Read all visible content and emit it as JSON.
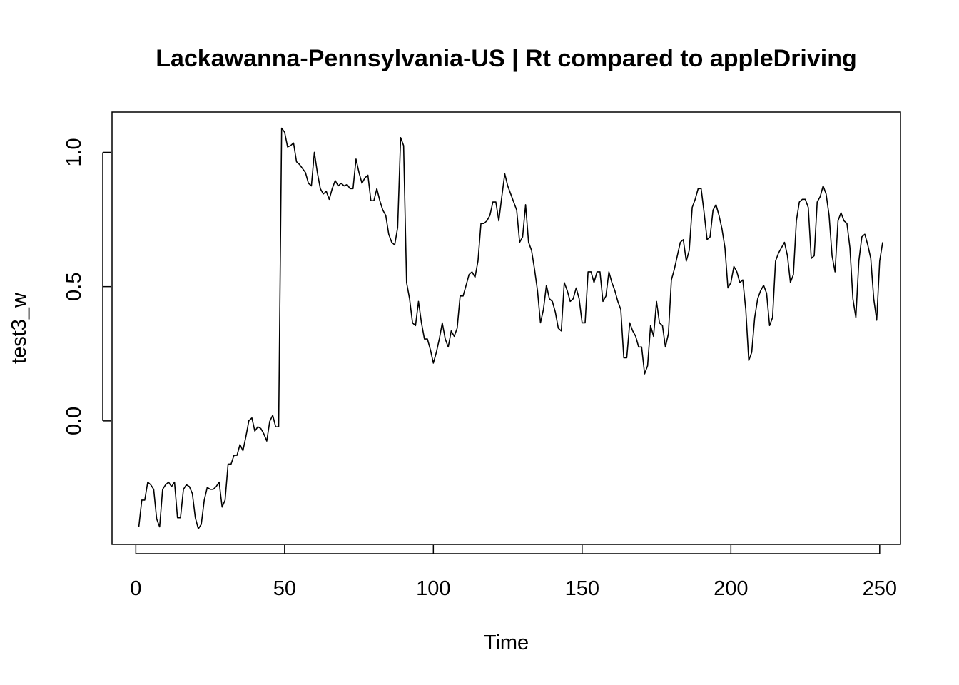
{
  "chart_data": {
    "type": "line",
    "title": "Lackawanna-Pennsylvania-US | Rt compared to appleDriving",
    "xlabel": "Time",
    "ylabel": "test3_w",
    "xlim": [
      -8,
      257
    ],
    "ylim": [
      -0.46,
      1.15
    ],
    "x_ticks": [
      0,
      50,
      100,
      150,
      200,
      250
    ],
    "y_ticks": [
      0.0,
      0.5,
      1.0
    ],
    "x_tick_labels": [
      "0",
      "50",
      "100",
      "150",
      "200",
      "250"
    ],
    "y_tick_labels": [
      "0.0",
      "0.5",
      "1.0"
    ],
    "grid": false,
    "series": [
      {
        "color": "#000000",
        "x_start": 1,
        "values": [
          -0.395,
          -0.295,
          -0.295,
          -0.228,
          -0.238,
          -0.255,
          -0.365,
          -0.395,
          -0.255,
          -0.238,
          -0.228,
          -0.245,
          -0.228,
          -0.361,
          -0.361,
          -0.255,
          -0.238,
          -0.245,
          -0.271,
          -0.361,
          -0.402,
          -0.385,
          -0.295,
          -0.248,
          -0.255,
          -0.255,
          -0.245,
          -0.228,
          -0.321,
          -0.295,
          -0.161,
          -0.161,
          -0.128,
          -0.128,
          -0.088,
          -0.111,
          -0.058,
          0.001,
          0.011,
          -0.038,
          -0.022,
          -0.028,
          -0.048,
          -0.075,
          -0.002,
          0.021,
          -0.022,
          -0.022,
          1.09,
          1.075,
          1.02,
          1.025,
          1.035,
          0.965,
          0.955,
          0.94,
          0.925,
          0.885,
          0.875,
          1.0,
          0.925,
          0.865,
          0.845,
          0.855,
          0.825,
          0.865,
          0.895,
          0.875,
          0.885,
          0.875,
          0.88,
          0.865,
          0.865,
          0.975,
          0.925,
          0.885,
          0.905,
          0.915,
          0.82,
          0.82,
          0.865,
          0.82,
          0.785,
          0.765,
          0.695,
          0.665,
          0.655,
          0.72,
          1.055,
          1.025,
          0.515,
          0.455,
          0.365,
          0.355,
          0.445,
          0.365,
          0.305,
          0.305,
          0.265,
          0.215,
          0.255,
          0.305,
          0.365,
          0.305,
          0.275,
          0.335,
          0.315,
          0.345,
          0.465,
          0.465,
          0.505,
          0.545,
          0.555,
          0.535,
          0.595,
          0.735,
          0.735,
          0.745,
          0.765,
          0.815,
          0.815,
          0.745,
          0.835,
          0.92,
          0.875,
          0.845,
          0.815,
          0.785,
          0.665,
          0.685,
          0.805,
          0.665,
          0.635,
          0.565,
          0.485,
          0.365,
          0.415,
          0.505,
          0.455,
          0.445,
          0.405,
          0.345,
          0.335,
          0.515,
          0.485,
          0.445,
          0.455,
          0.495,
          0.455,
          0.365,
          0.365,
          0.555,
          0.555,
          0.515,
          0.555,
          0.555,
          0.445,
          0.465,
          0.555,
          0.515,
          0.485,
          0.445,
          0.415,
          0.235,
          0.235,
          0.365,
          0.335,
          0.315,
          0.275,
          0.275,
          0.175,
          0.205,
          0.355,
          0.315,
          0.445,
          0.365,
          0.355,
          0.275,
          0.325,
          0.525,
          0.565,
          0.615,
          0.665,
          0.675,
          0.595,
          0.635,
          0.795,
          0.825,
          0.865,
          0.865,
          0.775,
          0.675,
          0.685,
          0.785,
          0.805,
          0.765,
          0.715,
          0.645,
          0.495,
          0.515,
          0.575,
          0.555,
          0.515,
          0.525,
          0.415,
          0.225,
          0.255,
          0.385,
          0.455,
          0.485,
          0.505,
          0.475,
          0.355,
          0.385,
          0.595,
          0.625,
          0.645,
          0.665,
          0.615,
          0.515,
          0.545,
          0.745,
          0.815,
          0.825,
          0.825,
          0.795,
          0.605,
          0.615,
          0.815,
          0.835,
          0.875,
          0.845,
          0.765,
          0.615,
          0.555,
          0.745,
          0.775,
          0.745,
          0.735,
          0.645,
          0.455,
          0.385,
          0.595,
          0.685,
          0.695,
          0.655,
          0.605,
          0.455,
          0.375,
          0.595,
          0.665
        ]
      }
    ]
  }
}
